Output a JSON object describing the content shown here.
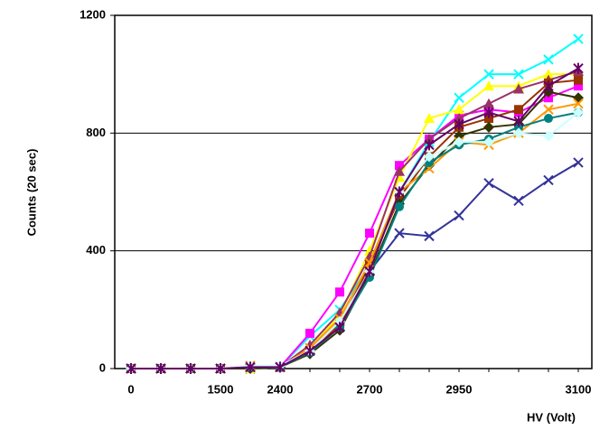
{
  "chart_data": {
    "type": "line",
    "y_label": "Counts (20 sec)",
    "x_label": "HV (Volt)",
    "categories": [
      "0",
      null,
      null,
      "1500",
      null,
      "2400",
      null,
      null,
      "2700",
      null,
      null,
      "2950",
      null,
      null,
      null,
      "3100"
    ],
    "ylim": [
      0,
      1200
    ],
    "yticks": [
      0,
      400,
      800,
      1200
    ],
    "grid": true,
    "series": [
      {
        "color": "#00ffff",
        "marker": "x",
        "values": [
          0,
          0,
          0,
          0,
          0,
          5,
          110,
          200,
          350,
          600,
          770,
          920,
          1000,
          1000,
          1050,
          1120
        ]
      },
      {
        "color": "#333399",
        "marker": "x",
        "values": [
          0,
          0,
          0,
          0,
          0,
          5,
          60,
          160,
          330,
          460,
          450,
          520,
          630,
          570,
          640,
          700
        ]
      },
      {
        "color": "#ff00ff",
        "marker": "square",
        "values": [
          0,
          0,
          0,
          0,
          5,
          5,
          120,
          260,
          460,
          690,
          780,
          860,
          880,
          870,
          920,
          960
        ]
      },
      {
        "color": "#ffff00",
        "marker": "triangle",
        "values": [
          0,
          0,
          0,
          0,
          0,
          5,
          70,
          180,
          400,
          650,
          850,
          880,
          960,
          960,
          1000,
          1000
        ]
      },
      {
        "color": "#993366",
        "marker": "triangle",
        "values": [
          0,
          0,
          0,
          0,
          5,
          5,
          80,
          190,
          380,
          670,
          780,
          850,
          900,
          950,
          980,
          1010
        ]
      },
      {
        "color": "#993300",
        "marker": "square",
        "values": [
          0,
          0,
          0,
          0,
          5,
          5,
          60,
          150,
          350,
          580,
          720,
          820,
          850,
          880,
          970,
          980
        ]
      },
      {
        "color": "#333300",
        "marker": "diamond",
        "values": [
          0,
          0,
          0,
          0,
          0,
          5,
          50,
          130,
          320,
          560,
          690,
          790,
          820,
          830,
          940,
          920
        ]
      },
      {
        "color": "#ff9900",
        "marker": "x",
        "values": [
          0,
          0,
          0,
          0,
          10,
          5,
          70,
          170,
          360,
          600,
          680,
          770,
          760,
          800,
          880,
          900
        ]
      },
      {
        "color": "#008080",
        "marker": "circle",
        "values": [
          0,
          0,
          0,
          0,
          5,
          5,
          55,
          140,
          310,
          550,
          700,
          760,
          780,
          820,
          850,
          870
        ]
      },
      {
        "color": "#ccffff",
        "marker": "diamond",
        "values": [
          0,
          0,
          0,
          0,
          10,
          10,
          60,
          160,
          330,
          600,
          720,
          770,
          770,
          800,
          790,
          870
        ]
      },
      {
        "color": "#660066",
        "marker": "star",
        "values": [
          0,
          0,
          0,
          0,
          5,
          5,
          60,
          140,
          330,
          600,
          760,
          830,
          870,
          840,
          960,
          1020
        ]
      }
    ]
  }
}
